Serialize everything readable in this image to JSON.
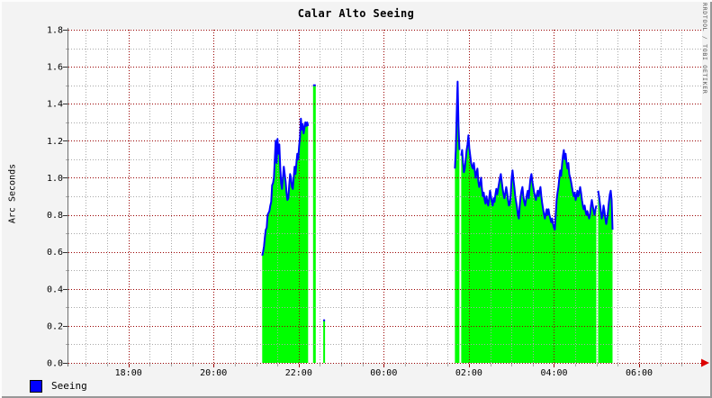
{
  "header": {
    "title": "Calar Alto Seeing",
    "watermark": "RRDTOOL / TOBI OETIKER"
  },
  "legend": {
    "items": [
      {
        "label": "Seeing",
        "color": "#0000ff"
      }
    ]
  },
  "chart_data": {
    "type": "area",
    "title": "Calar Alto Seeing",
    "xlabel": "",
    "ylabel": "Arc Seconds",
    "ylim": [
      0.0,
      1.8
    ],
    "y_major_step": 0.2,
    "y_minor_step": 0.1,
    "y_tick_labels": [
      "0.0",
      "0.2",
      "0.4",
      "0.6",
      "0.8",
      "1.0",
      "1.2",
      "1.4",
      "1.6",
      "1.8"
    ],
    "x_axis_hours": {
      "start": 16.59,
      "end": 31.48,
      "minor_step": 0.5,
      "major_step": 2
    },
    "x_tick_labels": [
      {
        "label": "18:00",
        "hour": 18
      },
      {
        "label": "20:00",
        "hour": 20
      },
      {
        "label": "22:00",
        "hour": 22
      },
      {
        "label": "00:00",
        "hour": 24
      },
      {
        "label": "02:00",
        "hour": 26
      },
      {
        "label": "04:00",
        "hour": 28
      },
      {
        "label": "06:00",
        "hour": 30
      }
    ],
    "grid": true,
    "legend_position": "bottom-left",
    "colors": {
      "area": "#00ff00",
      "line": "#0000ff",
      "grid_major": "#990000",
      "grid_minor": "#a9a9a9",
      "axis": "#6e6e6e",
      "arrow": "#dd0000",
      "background": "#f3f3f3",
      "plot_background": "#ffffff"
    },
    "series": [
      {
        "name": "Seeing",
        "unit": "arc seconds",
        "segments": [
          {
            "start_hour": 21.143,
            "step_hour": 0.02116,
            "values": [
              0.58,
              0.6,
              0.63,
              0.68,
              0.72,
              0.73,
              0.8,
              0.81,
              0.82,
              0.85,
              0.87,
              0.96,
              0.97,
              1.0,
              1.1,
              1.2,
              1.08,
              1.21,
              1.13,
              1.18,
              1.06,
              0.97,
              0.94,
              1.0,
              1.06,
              1.02,
              0.98,
              0.92,
              0.88,
              0.89,
              0.96,
              1.02,
              1.0,
              0.95,
              0.94,
              1.0,
              1.06,
              1.02,
              1.08,
              1.13,
              1.1,
              1.17,
              1.22,
              1.32,
              1.26,
              1.29,
              1.24,
              1.27,
              1.3,
              1.28,
              1.3,
              1.28
            ]
          },
          {
            "start_hour": 22.338,
            "step_hour": 0.0635,
            "values": [
              1.5,
              1.5
            ]
          },
          {
            "start_hour": 22.577,
            "step_hour": 0.042,
            "values": [
              0.23,
              0.23
            ]
          },
          {
            "start_hour": 25.672,
            "step_hour": 0.02116,
            "values": [
              1.05,
              1.15,
              1.35,
              1.52,
              1.28,
              1.15
            ]
          },
          {
            "start_hour": 25.82,
            "step_hour": 0.02116,
            "values": [
              1.12,
              1.15,
              1.08,
              1.03,
              1.05,
              1.1,
              1.15,
              1.18,
              1.23,
              1.16,
              1.12,
              1.08,
              1.06,
              1.05,
              1.08,
              1.04,
              1.0,
              1.03,
              1.05,
              0.98,
              0.95,
              0.97,
              1.0,
              0.94,
              0.9,
              0.92,
              0.88,
              0.86,
              0.9,
              0.87,
              0.85,
              0.89,
              0.93,
              0.9,
              0.87,
              0.85,
              0.89,
              0.87,
              0.91,
              0.94,
              0.91,
              0.94,
              0.97,
              1.0,
              1.02,
              0.98,
              0.94,
              0.91,
              0.89,
              0.92,
              0.95,
              0.92,
              0.88,
              0.85,
              0.86,
              0.91,
              1.0,
              1.04,
              0.99,
              0.95,
              0.9,
              0.87,
              0.84,
              0.8,
              0.78,
              0.85,
              0.9,
              0.93,
              0.95,
              0.9,
              0.87,
              0.85,
              0.88,
              0.91,
              0.93,
              0.89,
              0.95,
              1.0,
              1.02,
              0.98,
              0.95,
              0.92,
              0.9,
              0.88,
              0.91,
              0.93,
              0.9,
              0.93,
              0.95,
              0.9,
              0.86,
              0.83,
              0.8,
              0.78,
              0.81,
              0.83,
              0.8,
              0.83,
              0.8,
              0.78,
              0.76,
              0.78,
              0.75,
              0.73,
              0.72,
              0.8,
              0.88,
              0.92,
              0.95,
              1.0,
              1.04,
              1.01,
              1.07,
              1.12,
              1.15,
              1.1,
              1.13,
              1.08,
              1.05,
              1.08,
              1.02,
              1.0,
              0.98,
              0.95,
              0.92,
              0.9,
              0.92,
              0.88,
              0.9,
              0.93,
              0.9,
              0.92,
              0.95,
              0.92,
              0.88,
              0.85,
              0.83,
              0.85,
              0.82,
              0.8,
              0.82,
              0.8,
              0.78,
              0.8,
              0.85,
              0.88,
              0.85,
              0.82,
              0.8,
              0.83,
              0.85
            ]
          },
          {
            "start_hour": 29.037,
            "step_hour": 0.02116,
            "values": [
              0.93,
              0.9,
              0.86,
              0.82,
              0.78,
              0.8,
              0.85,
              0.82,
              0.78,
              0.75,
              0.78,
              0.82,
              0.87,
              0.91,
              0.93,
              0.88,
              0.72
            ]
          }
        ]
      }
    ]
  }
}
